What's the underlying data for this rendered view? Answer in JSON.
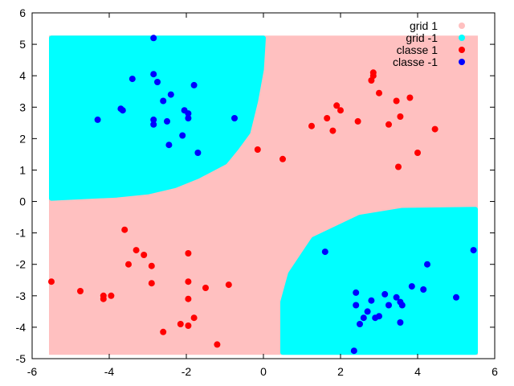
{
  "chart_data": {
    "type": "scatter",
    "title": "",
    "xlabel": "",
    "ylabel": "",
    "xlim": [
      -6,
      6
    ],
    "ylim": [
      -5,
      6
    ],
    "xticks": [
      "-6",
      "-4",
      "-2",
      "0",
      "2",
      "4",
      "6"
    ],
    "yticks": [
      "-5",
      "-4",
      "-3",
      "-2",
      "-1",
      "0",
      "1",
      "2",
      "3",
      "4",
      "5",
      "6"
    ],
    "grid": false,
    "legend_position": "top-right",
    "colors": {
      "grid_pos": "#ffc0c0",
      "grid_neg": "#00ffff",
      "classe_pos": "#ff0000",
      "classe_neg": "#0000ff"
    },
    "decision_grid": {
      "xrange": [
        -5.5,
        5.5
      ],
      "yrange": [
        -4.8,
        5.2
      ],
      "default_class": "grid 1",
      "regions": [
        {
          "class": "grid -1",
          "boundary": [
            [
              -5.5,
              0.1
            ],
            [
              -3.8,
              0.2
            ],
            [
              -3.0,
              0.3
            ],
            [
              -2.3,
              0.5
            ],
            [
              -1.7,
              0.8
            ],
            [
              -1.0,
              1.25
            ],
            [
              -0.7,
              1.7
            ],
            [
              -0.4,
              2.2
            ],
            [
              -0.2,
              3.2
            ],
            [
              -0.05,
              4.2
            ],
            [
              0.0,
              5.2
            ],
            [
              -5.5,
              5.2
            ]
          ]
        },
        {
          "class": "grid -1",
          "boundary": [
            [
              0.5,
              -4.8
            ],
            [
              0.5,
              -3.2
            ],
            [
              0.7,
              -2.3
            ],
            [
              1.3,
              -1.2
            ],
            [
              2.5,
              -0.5
            ],
            [
              3.6,
              -0.28
            ],
            [
              5.5,
              -0.25
            ],
            [
              5.5,
              -4.8
            ]
          ]
        }
      ]
    },
    "legend": [
      {
        "label": "grid 1",
        "color": "#ffc0c0"
      },
      {
        "label": "grid -1",
        "color": "#00ffff"
      },
      {
        "label": "classe 1",
        "color": "#ff0000"
      },
      {
        "label": "classe -1",
        "color": "#0000ff"
      }
    ],
    "series": [
      {
        "name": "classe 1",
        "color": "#ff0000",
        "points": [
          [
            -3.6,
            -0.9
          ],
          [
            -3.3,
            -1.55
          ],
          [
            -3.5,
            -2.0
          ],
          [
            -3.1,
            -1.7
          ],
          [
            -2.9,
            -2.05
          ],
          [
            -2.9,
            -2.6
          ],
          [
            -1.95,
            -1.65
          ],
          [
            -1.95,
            -2.55
          ],
          [
            -1.5,
            -2.75
          ],
          [
            -0.9,
            -2.65
          ],
          [
            -4.75,
            -2.85
          ],
          [
            -4.15,
            -3.0
          ],
          [
            -4.15,
            -3.1
          ],
          [
            -3.95,
            -3.0
          ],
          [
            -2.6,
            -4.15
          ],
          [
            -2.15,
            -3.9
          ],
          [
            -1.95,
            -3.95
          ],
          [
            -1.8,
            -3.7
          ],
          [
            -1.95,
            -3.1
          ],
          [
            -1.2,
            -4.55
          ],
          [
            -5.5,
            -2.55
          ],
          [
            -0.15,
            1.65
          ],
          [
            0.5,
            1.35
          ],
          [
            1.25,
            2.4
          ],
          [
            1.65,
            2.65
          ],
          [
            1.8,
            2.25
          ],
          [
            1.9,
            3.05
          ],
          [
            2.0,
            2.9
          ],
          [
            2.45,
            2.55
          ],
          [
            2.8,
            3.85
          ],
          [
            2.85,
            4.0
          ],
          [
            2.85,
            4.1
          ],
          [
            3.0,
            3.45
          ],
          [
            3.25,
            2.45
          ],
          [
            3.45,
            3.2
          ],
          [
            3.55,
            2.7
          ],
          [
            3.5,
            1.1
          ],
          [
            3.8,
            3.3
          ],
          [
            4.0,
            1.55
          ],
          [
            4.45,
            2.3
          ]
        ]
      },
      {
        "name": "classe -1",
        "color": "#0000ff",
        "points": [
          [
            -2.85,
            5.2
          ],
          [
            -3.4,
            3.9
          ],
          [
            -2.85,
            4.05
          ],
          [
            -2.75,
            3.8
          ],
          [
            -2.6,
            3.2
          ],
          [
            -2.4,
            3.4
          ],
          [
            -1.8,
            3.7
          ],
          [
            -2.05,
            2.9
          ],
          [
            -1.95,
            2.8
          ],
          [
            -1.95,
            2.65
          ],
          [
            -2.5,
            2.55
          ],
          [
            -2.85,
            2.6
          ],
          [
            -2.85,
            2.45
          ],
          [
            -2.1,
            2.1
          ],
          [
            -2.45,
            1.8
          ],
          [
            -1.7,
            1.55
          ],
          [
            -3.7,
            2.95
          ],
          [
            -3.65,
            2.9
          ],
          [
            -4.3,
            2.6
          ],
          [
            -0.75,
            2.65
          ],
          [
            1.6,
            -1.6
          ],
          [
            4.25,
            -2.0
          ],
          [
            5.45,
            -1.55
          ],
          [
            3.85,
            -2.7
          ],
          [
            4.15,
            -2.8
          ],
          [
            5.0,
            -3.05
          ],
          [
            2.4,
            -2.9
          ],
          [
            2.4,
            -3.3
          ],
          [
            2.8,
            -3.15
          ],
          [
            3.15,
            -2.95
          ],
          [
            3.25,
            -3.3
          ],
          [
            3.45,
            -3.05
          ],
          [
            3.55,
            -3.2
          ],
          [
            3.6,
            -3.3
          ],
          [
            3.55,
            -3.85
          ],
          [
            2.6,
            -3.7
          ],
          [
            2.9,
            -3.7
          ],
          [
            3.0,
            -3.65
          ],
          [
            2.7,
            -3.5
          ],
          [
            2.5,
            -3.9
          ],
          [
            2.35,
            -4.75
          ]
        ]
      }
    ]
  }
}
